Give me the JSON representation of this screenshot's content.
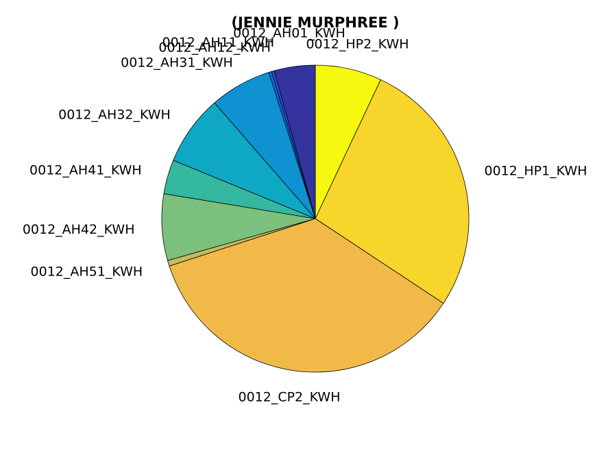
{
  "chart_data": {
    "type": "pie",
    "title": "(JENNIE MURPHREE )",
    "slices": [
      {
        "label": "0012_HP2_KWH",
        "value": 7.0,
        "color": "#f6f90f"
      },
      {
        "label": "0012_HP1_KWH",
        "value": 27.3,
        "color": "#f7d52a"
      },
      {
        "label": "0012_CP2_KWH",
        "value": 35.7,
        "color": "#f1ba48"
      },
      {
        "label": "0012_AH51_KWH",
        "value": 0.6,
        "color": "#c4bc5f"
      },
      {
        "label": "0012_AH42_KWH",
        "value": 7.0,
        "color": "#7cc07d"
      },
      {
        "label": "0012_AH41_KWH",
        "value": 3.6,
        "color": "#35b8a0"
      },
      {
        "label": "0012_AH32_KWH",
        "value": 7.4,
        "color": "#0fa8c4"
      },
      {
        "label": "0012_AH31_KWH",
        "value": 6.5,
        "color": "#1092d2"
      },
      {
        "label": "0012_AH12_KWH",
        "value": 0.3,
        "color": "#1869d6"
      },
      {
        "label": "0012_AH11_KWH",
        "value": 0.3,
        "color": "#1c52d8"
      },
      {
        "label": "0012_AH01_KWH",
        "value": 4.3,
        "color": "#3433a0"
      }
    ],
    "start": "12 o'clock",
    "direction": "clockwise",
    "legend": "none"
  }
}
